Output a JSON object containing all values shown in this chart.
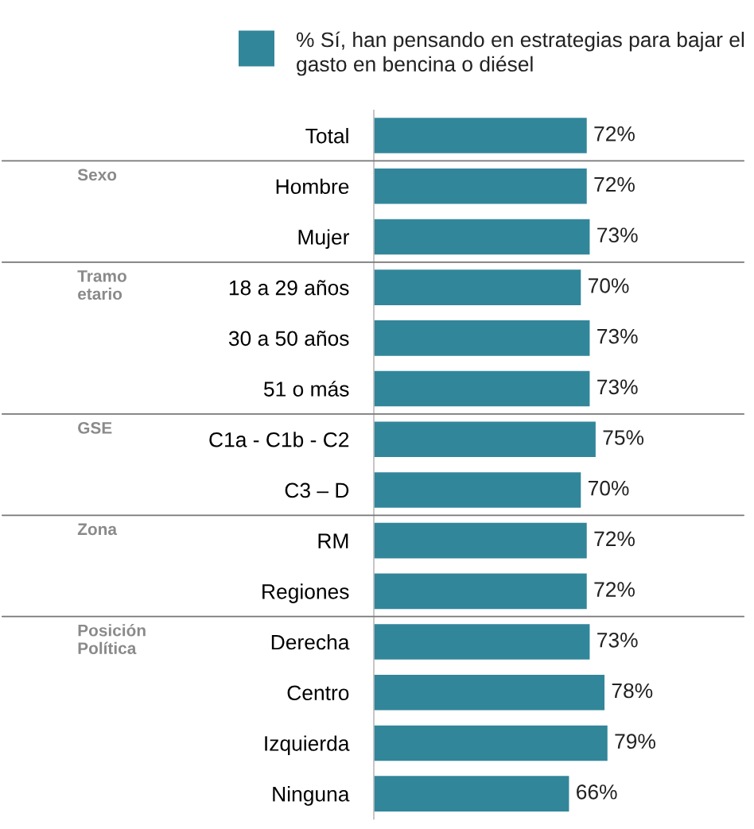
{
  "chart_data": {
    "type": "bar",
    "orientation": "horizontal",
    "categories": [
      "Total",
      "Hombre",
      "Mujer",
      "18 a 29 años",
      "30 a 50 años",
      "51 o más",
      "C1a - C1b - C2",
      "C3 – D",
      "RM",
      "Regiones",
      "Derecha",
      "Centro",
      "Izquierda",
      "Ninguna"
    ],
    "series": [
      {
        "name": "% Sí, han pensando en estrategias para bajar el gasto en bencina o diésel",
        "color": "#32869a",
        "values": [
          72,
          72,
          73,
          70,
          73,
          73,
          75,
          70,
          72,
          72,
          73,
          78,
          79,
          66
        ],
        "value_labels": [
          "72%",
          "72%",
          "73%",
          "70%",
          "73%",
          "73%",
          "75%",
          "70%",
          "72%",
          "72%",
          "73%",
          "78%",
          "79%",
          "66%"
        ]
      }
    ],
    "annotations": [
      "Sexo",
      "Tramo\netario",
      "GSE",
      "Zona",
      "Posición\nPolítica"
    ],
    "legend": "top"
  }
}
